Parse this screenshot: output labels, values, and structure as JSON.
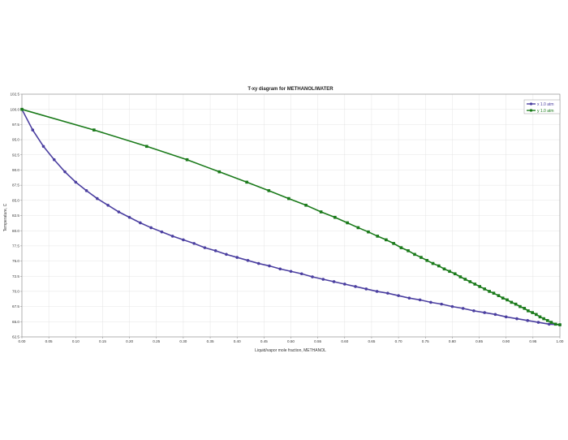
{
  "chart_data": {
    "type": "line",
    "title": "T-xy diagram for METHANOL/WATER",
    "xlabel": "Liquid/vapor mole fraction, METHANOL",
    "ylabel": "Temperature, C",
    "xlim": [
      0,
      1
    ],
    "ylim": [
      62.5,
      102.5
    ],
    "grid": true,
    "legend_position": "top-right",
    "x_ticks": [
      "0.00",
      "0.05",
      "0.10",
      "0.15",
      "0.20",
      "0.25",
      "0.30",
      "0.35",
      "0.40",
      "0.45",
      "0.50",
      "0.55",
      "0.60",
      "0.65",
      "0.70",
      "0.75",
      "0.80",
      "0.85",
      "0.90",
      "0.95",
      "1.00"
    ],
    "y_ticks": [
      "102.5",
      "100.0",
      "97.5",
      "95.0",
      "92.5",
      "90.0",
      "87.5",
      "85.0",
      "82.5",
      "80.0",
      "77.5",
      "75.0",
      "72.5",
      "70.0",
      "67.5",
      "65.0",
      "62.5"
    ],
    "series": [
      {
        "name": "x  1.0 atm",
        "color": "#4b3fa0",
        "marker": "circle",
        "points": [
          [
            0.0,
            100.0
          ],
          [
            0.02,
            96.6
          ],
          [
            0.04,
            93.9
          ],
          [
            0.06,
            91.7
          ],
          [
            0.08,
            89.7
          ],
          [
            0.1,
            88.0
          ],
          [
            0.12,
            86.6
          ],
          [
            0.14,
            85.3
          ],
          [
            0.16,
            84.2
          ],
          [
            0.18,
            83.1
          ],
          [
            0.2,
            82.2
          ],
          [
            0.22,
            81.3
          ],
          [
            0.24,
            80.5
          ],
          [
            0.26,
            79.8
          ],
          [
            0.28,
            79.1
          ],
          [
            0.3,
            78.5
          ],
          [
            0.32,
            77.9
          ],
          [
            0.34,
            77.2
          ],
          [
            0.36,
            76.7
          ],
          [
            0.38,
            76.1
          ],
          [
            0.4,
            75.6
          ],
          [
            0.42,
            75.1
          ],
          [
            0.44,
            74.6
          ],
          [
            0.46,
            74.2
          ],
          [
            0.48,
            73.7
          ],
          [
            0.5,
            73.3
          ],
          [
            0.52,
            72.9
          ],
          [
            0.54,
            72.4
          ],
          [
            0.56,
            72.0
          ],
          [
            0.58,
            71.6
          ],
          [
            0.6,
            71.2
          ],
          [
            0.62,
            70.8
          ],
          [
            0.64,
            70.4
          ],
          [
            0.66,
            70.0
          ],
          [
            0.68,
            69.7
          ],
          [
            0.7,
            69.3
          ],
          [
            0.72,
            68.9
          ],
          [
            0.74,
            68.6
          ],
          [
            0.76,
            68.2
          ],
          [
            0.78,
            67.9
          ],
          [
            0.8,
            67.5
          ],
          [
            0.82,
            67.2
          ],
          [
            0.84,
            66.8
          ],
          [
            0.86,
            66.5
          ],
          [
            0.88,
            66.2
          ],
          [
            0.9,
            65.8
          ],
          [
            0.92,
            65.5
          ],
          [
            0.94,
            65.2
          ],
          [
            0.96,
            64.9
          ],
          [
            0.98,
            64.6
          ],
          [
            1.0,
            64.5
          ]
        ]
      },
      {
        "name": "y  1.0 atm",
        "color": "#1a7a1a",
        "marker": "square",
        "points": [
          [
            0.0,
            100.0
          ],
          [
            0.134,
            96.6
          ],
          [
            0.232,
            93.9
          ],
          [
            0.307,
            91.7
          ],
          [
            0.367,
            89.7
          ],
          [
            0.418,
            88.0
          ],
          [
            0.459,
            86.6
          ],
          [
            0.496,
            85.3
          ],
          [
            0.528,
            84.2
          ],
          [
            0.556,
            83.1
          ],
          [
            0.582,
            82.2
          ],
          [
            0.605,
            81.3
          ],
          [
            0.625,
            80.5
          ],
          [
            0.644,
            79.8
          ],
          [
            0.661,
            79.1
          ],
          [
            0.677,
            78.5
          ],
          [
            0.691,
            77.9
          ],
          [
            0.705,
            77.2
          ],
          [
            0.718,
            76.7
          ],
          [
            0.73,
            76.1
          ],
          [
            0.742,
            75.6
          ],
          [
            0.753,
            75.1
          ],
          [
            0.764,
            74.6
          ],
          [
            0.775,
            74.2
          ],
          [
            0.785,
            73.7
          ],
          [
            0.795,
            73.3
          ],
          [
            0.805,
            72.9
          ],
          [
            0.815,
            72.4
          ],
          [
            0.824,
            72.0
          ],
          [
            0.833,
            71.6
          ],
          [
            0.842,
            71.2
          ],
          [
            0.851,
            70.8
          ],
          [
            0.86,
            70.4
          ],
          [
            0.869,
            70.0
          ],
          [
            0.877,
            69.7
          ],
          [
            0.886,
            69.3
          ],
          [
            0.894,
            68.9
          ],
          [
            0.902,
            68.6
          ],
          [
            0.91,
            68.2
          ],
          [
            0.918,
            67.9
          ],
          [
            0.926,
            67.5
          ],
          [
            0.934,
            67.2
          ],
          [
            0.941,
            66.8
          ],
          [
            0.949,
            66.5
          ],
          [
            0.956,
            66.2
          ],
          [
            0.963,
            65.8
          ],
          [
            0.97,
            65.5
          ],
          [
            0.977,
            65.2
          ],
          [
            0.984,
            64.9
          ],
          [
            0.992,
            64.6
          ],
          [
            1.0,
            64.5
          ]
        ]
      }
    ]
  }
}
